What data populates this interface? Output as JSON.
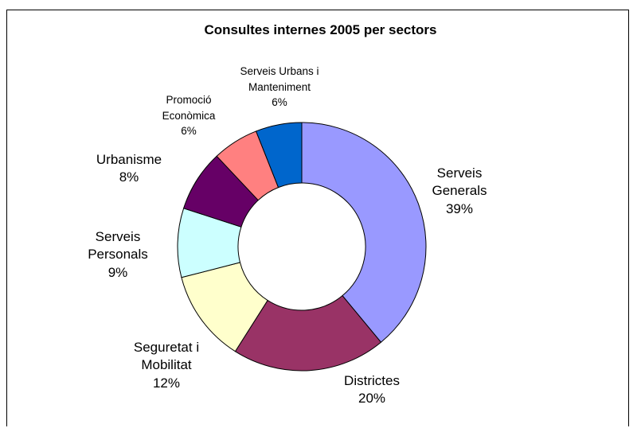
{
  "chart_data": {
    "type": "pie",
    "title": "Consultes internes 2005 per sectors",
    "slices": [
      {
        "label_lines": [
          "Serveis",
          "Generals"
        ],
        "percent_label": "39%",
        "value": 39,
        "color": "#9999FF"
      },
      {
        "label_lines": [
          "Districtes"
        ],
        "percent_label": "20%",
        "value": 20,
        "color": "#993366"
      },
      {
        "label_lines": [
          "Seguretat i",
          "Mobilitat"
        ],
        "percent_label": "12%",
        "value": 12,
        "color": "#FFFFCC"
      },
      {
        "label_lines": [
          "Serveis",
          "Personals"
        ],
        "percent_label": "9%",
        "value": 9,
        "color": "#CCFFFF"
      },
      {
        "label_lines": [
          "Urbanisme"
        ],
        "percent_label": "8%",
        "value": 8,
        "color": "#660066"
      },
      {
        "label_lines": [
          "Promoció",
          "Econòmica"
        ],
        "percent_label": "6%",
        "value": 6,
        "color": "#FF8080"
      },
      {
        "label_lines": [
          "Serveis Urbans i",
          "Manteniment"
        ],
        "percent_label": "6%",
        "value": 6,
        "color": "#0066CC"
      }
    ]
  }
}
